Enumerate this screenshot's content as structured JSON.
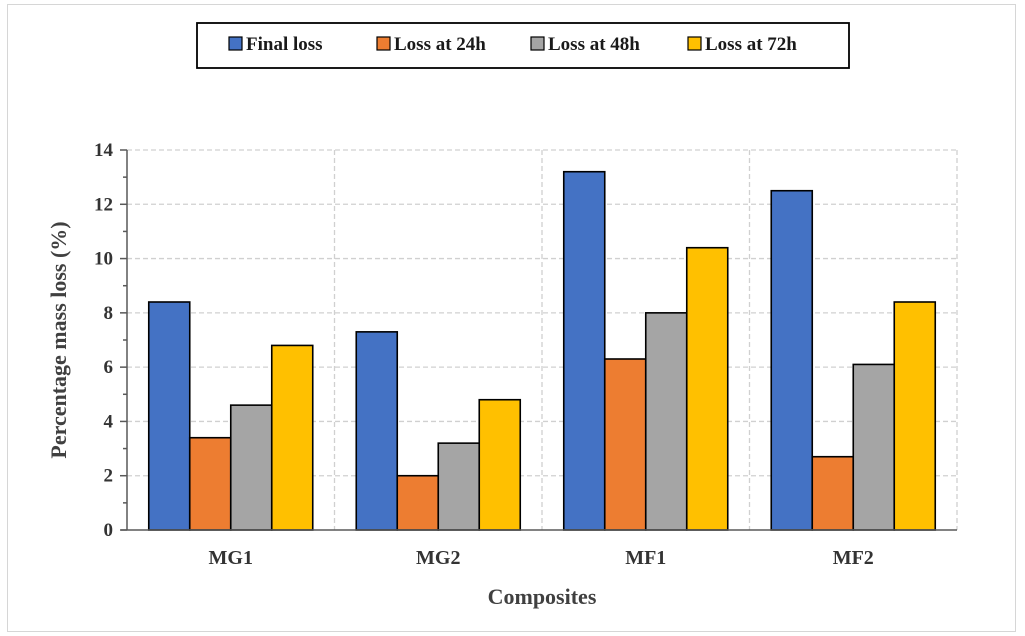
{
  "chart_data": {
    "type": "bar",
    "title": "",
    "xlabel": "Composites",
    "ylabel": "Percentage mass loss (%)",
    "ylim": [
      0,
      14
    ],
    "yticks": [
      0,
      2,
      4,
      6,
      8,
      10,
      12,
      14
    ],
    "grid": true,
    "legend_position": "top",
    "categories": [
      "MG1",
      "MG2",
      "MF1",
      "MF2"
    ],
    "series": [
      {
        "name": "Final loss",
        "color": "#4472C4",
        "values": [
          8.4,
          7.3,
          13.2,
          12.5
        ]
      },
      {
        "name": "Loss at 24h",
        "color": "#ED7D31",
        "values": [
          3.4,
          2.0,
          6.3,
          2.7
        ]
      },
      {
        "name": "Loss at 48h",
        "color": "#A5A5A5",
        "values": [
          4.6,
          3.2,
          8.0,
          6.1
        ]
      },
      {
        "name": "Loss at 72h",
        "color": "#FFC000",
        "values": [
          6.8,
          4.8,
          10.4,
          8.4
        ]
      }
    ]
  }
}
